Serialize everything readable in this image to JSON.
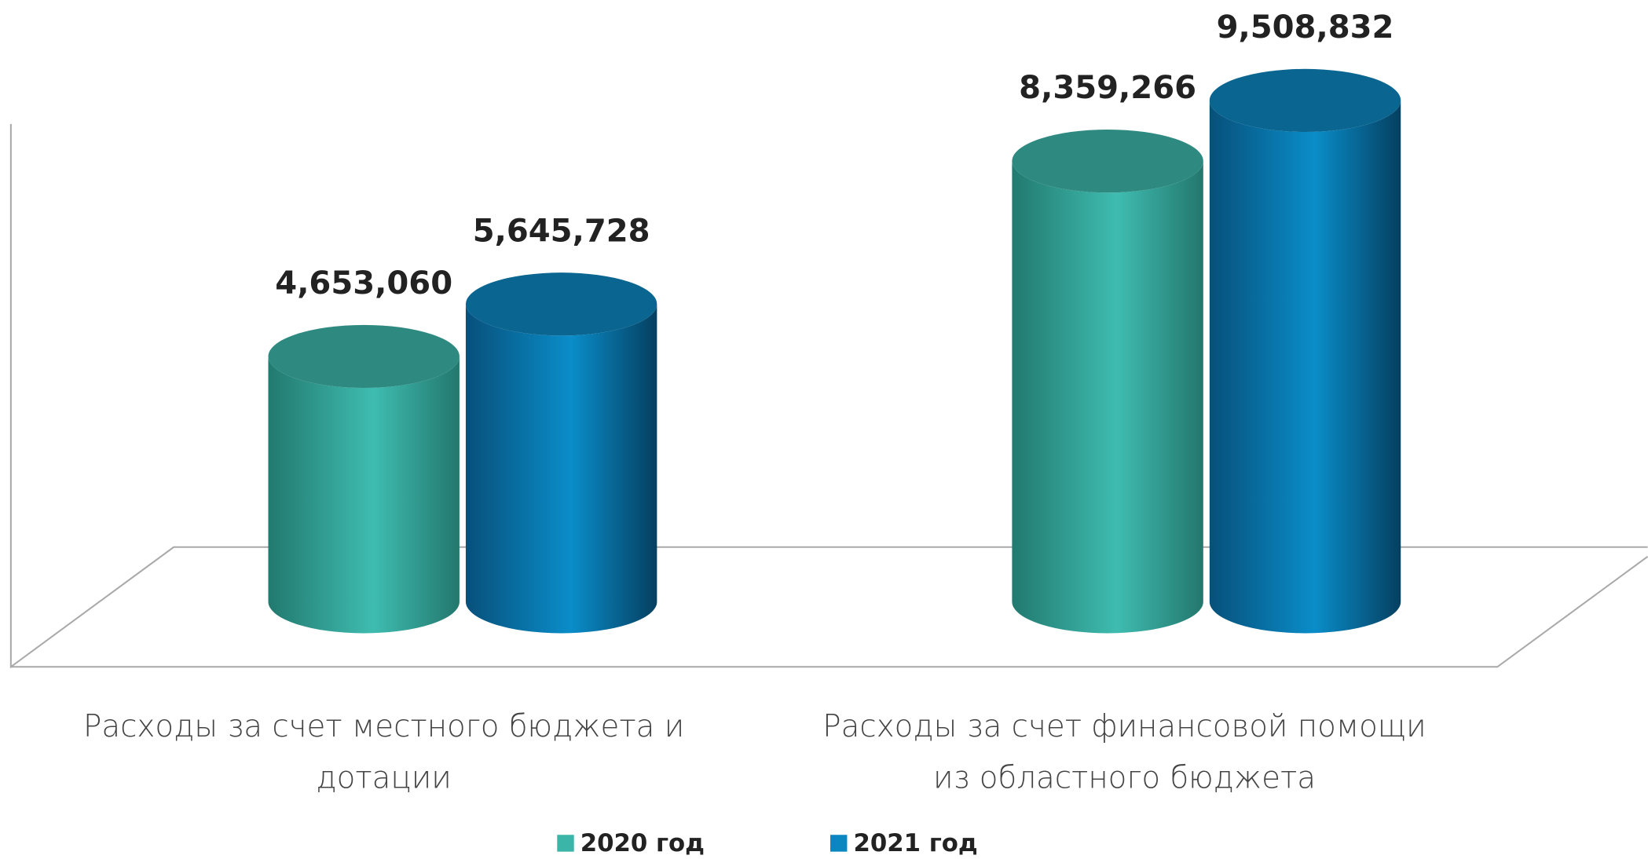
{
  "chart_data": {
    "type": "bar3d",
    "categories": [
      "Расходы за счет местного бюджета и дотации",
      "Расходы за счет финансовой помощи из областного бюджета"
    ],
    "series": [
      {
        "name": "2020 год",
        "color": "#3ab5a8",
        "values": [
          4653060,
          8359266
        ],
        "value_labels": [
          "4,653,060",
          "8,359,266"
        ]
      },
      {
        "name": "2021 год",
        "color": "#0a86c0",
        "values": [
          5645728,
          9508832
        ],
        "value_labels": [
          "5,645,728",
          "9,508,832"
        ]
      }
    ],
    "ylim": [
      0,
      10000000
    ]
  }
}
